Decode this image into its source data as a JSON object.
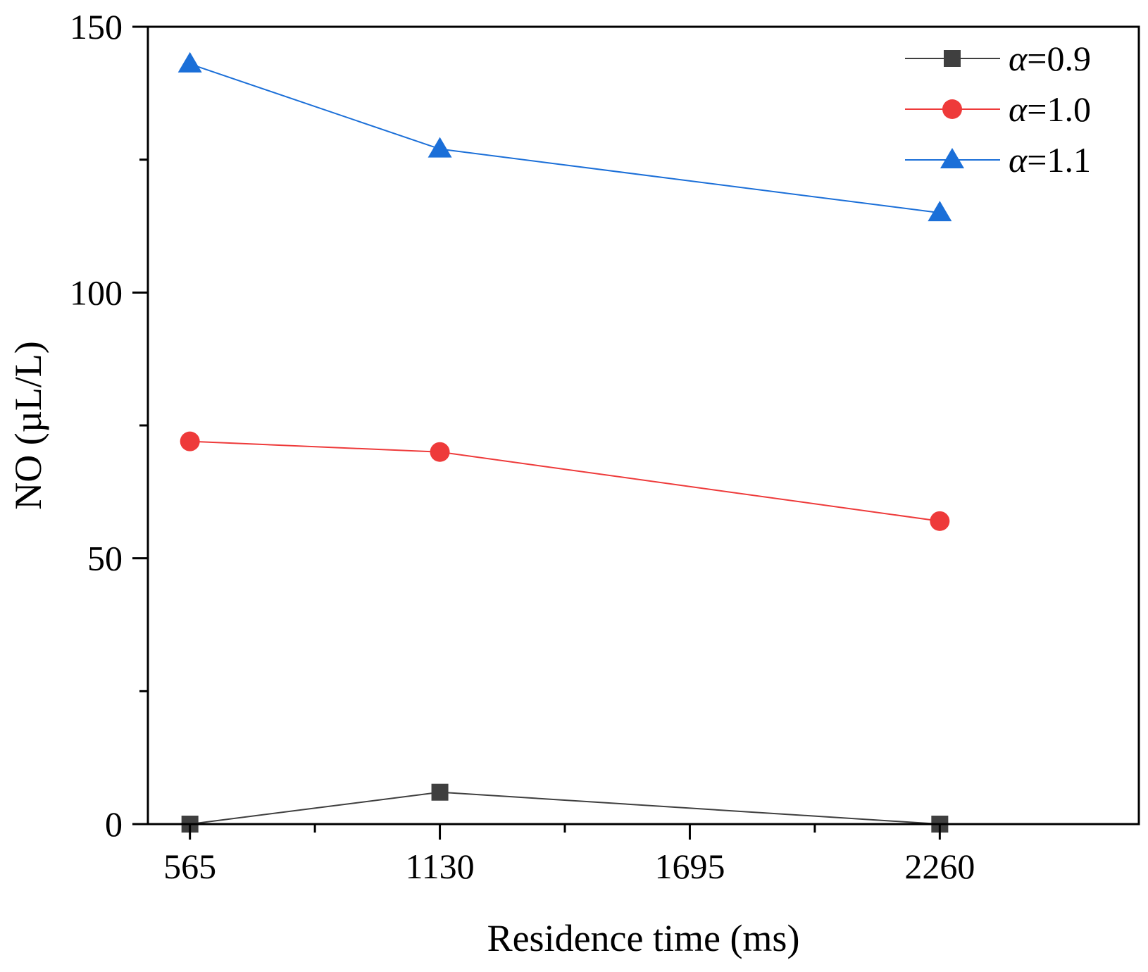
{
  "chart_data": {
    "type": "line",
    "title": "",
    "xlabel": "Residence time (ms)",
    "ylabel": "NO (µL/L)",
    "categories": [
      "565",
      "1130",
      "1695",
      "2260"
    ],
    "x": [
      565,
      1130,
      2260
    ],
    "xlim": [
      470,
      2710
    ],
    "ylim": [
      0,
      150
    ],
    "x_ticks": [
      565,
      1130,
      1695,
      2260
    ],
    "x_tick_labels": [
      "565",
      "1130",
      "1695",
      "2260"
    ],
    "x_minor_ticks": [
      847.5,
      1412.5,
      1977.5
    ],
    "y_ticks": [
      0,
      50,
      100,
      150
    ],
    "y_tick_labels": [
      "0",
      "50",
      "100",
      "150"
    ],
    "y_minor_ticks": [
      25,
      75,
      125
    ],
    "grid": false,
    "legend_position": "top-right",
    "series": [
      {
        "name": "α=0.9",
        "symbol": "α",
        "value_text": "=0.9",
        "marker": "square",
        "color": "#3f3f3f",
        "x": [
          565,
          1130,
          2260
        ],
        "values": [
          0,
          6,
          0
        ]
      },
      {
        "name": "α=1.0",
        "symbol": "α",
        "value_text": "=1.0",
        "marker": "circle",
        "color": "#ee3a3a",
        "x": [
          565,
          1130,
          2260
        ],
        "values": [
          72,
          70,
          57
        ]
      },
      {
        "name": "α=1.1",
        "symbol": "α",
        "value_text": "=1.1",
        "marker": "triangle",
        "color": "#1b6fd8",
        "x": [
          565,
          1130,
          2260
        ],
        "values": [
          143,
          127,
          115
        ]
      }
    ]
  }
}
